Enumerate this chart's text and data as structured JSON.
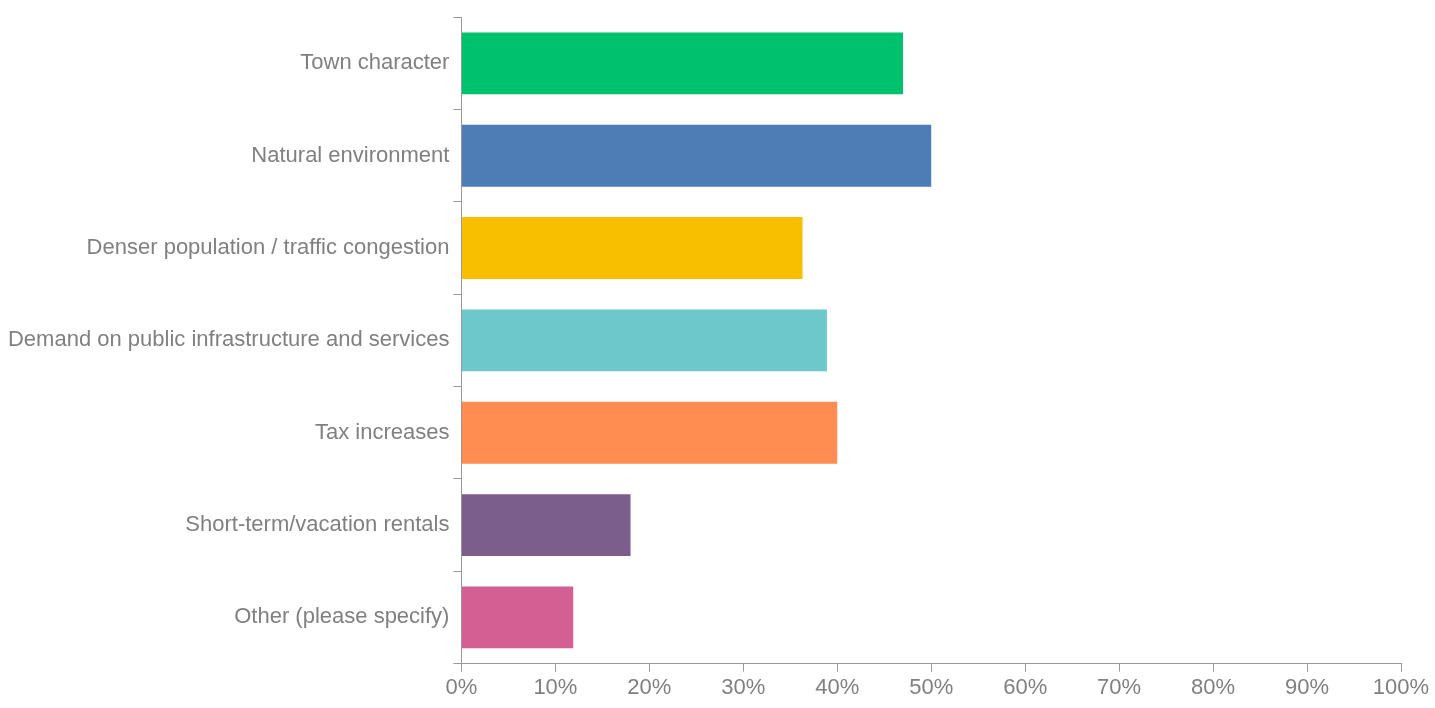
{
  "chart_data": {
    "type": "bar",
    "orientation": "horizontal",
    "categories": [
      "Town character",
      "Natural environment",
      "Denser population / traffic congestion",
      "Demand on public infrastructure and services",
      "Tax increases",
      "Short-term/vacation rentals",
      "Other (please specify)"
    ],
    "values": [
      47,
      50,
      36.3,
      38.9,
      40,
      18,
      11.9
    ],
    "colors": [
      "#00c16e",
      "#4e7db6",
      "#f8be00",
      "#6dc8cc",
      "#ff8c50",
      "#7c5e8d",
      "#d45f92"
    ],
    "xlim": [
      0,
      100
    ],
    "xticks": [
      {
        "value": 0,
        "label": "0%"
      },
      {
        "value": 10,
        "label": "10%"
      },
      {
        "value": 20,
        "label": "20%"
      },
      {
        "value": 30,
        "label": "30%"
      },
      {
        "value": 40,
        "label": "40%"
      },
      {
        "value": 50,
        "label": "50%"
      },
      {
        "value": 60,
        "label": "60%"
      },
      {
        "value": 70,
        "label": "70%"
      },
      {
        "value": 80,
        "label": "80%"
      },
      {
        "value": 90,
        "label": "90%"
      },
      {
        "value": 100,
        "label": "100%"
      }
    ],
    "grid": false,
    "legend": false
  }
}
